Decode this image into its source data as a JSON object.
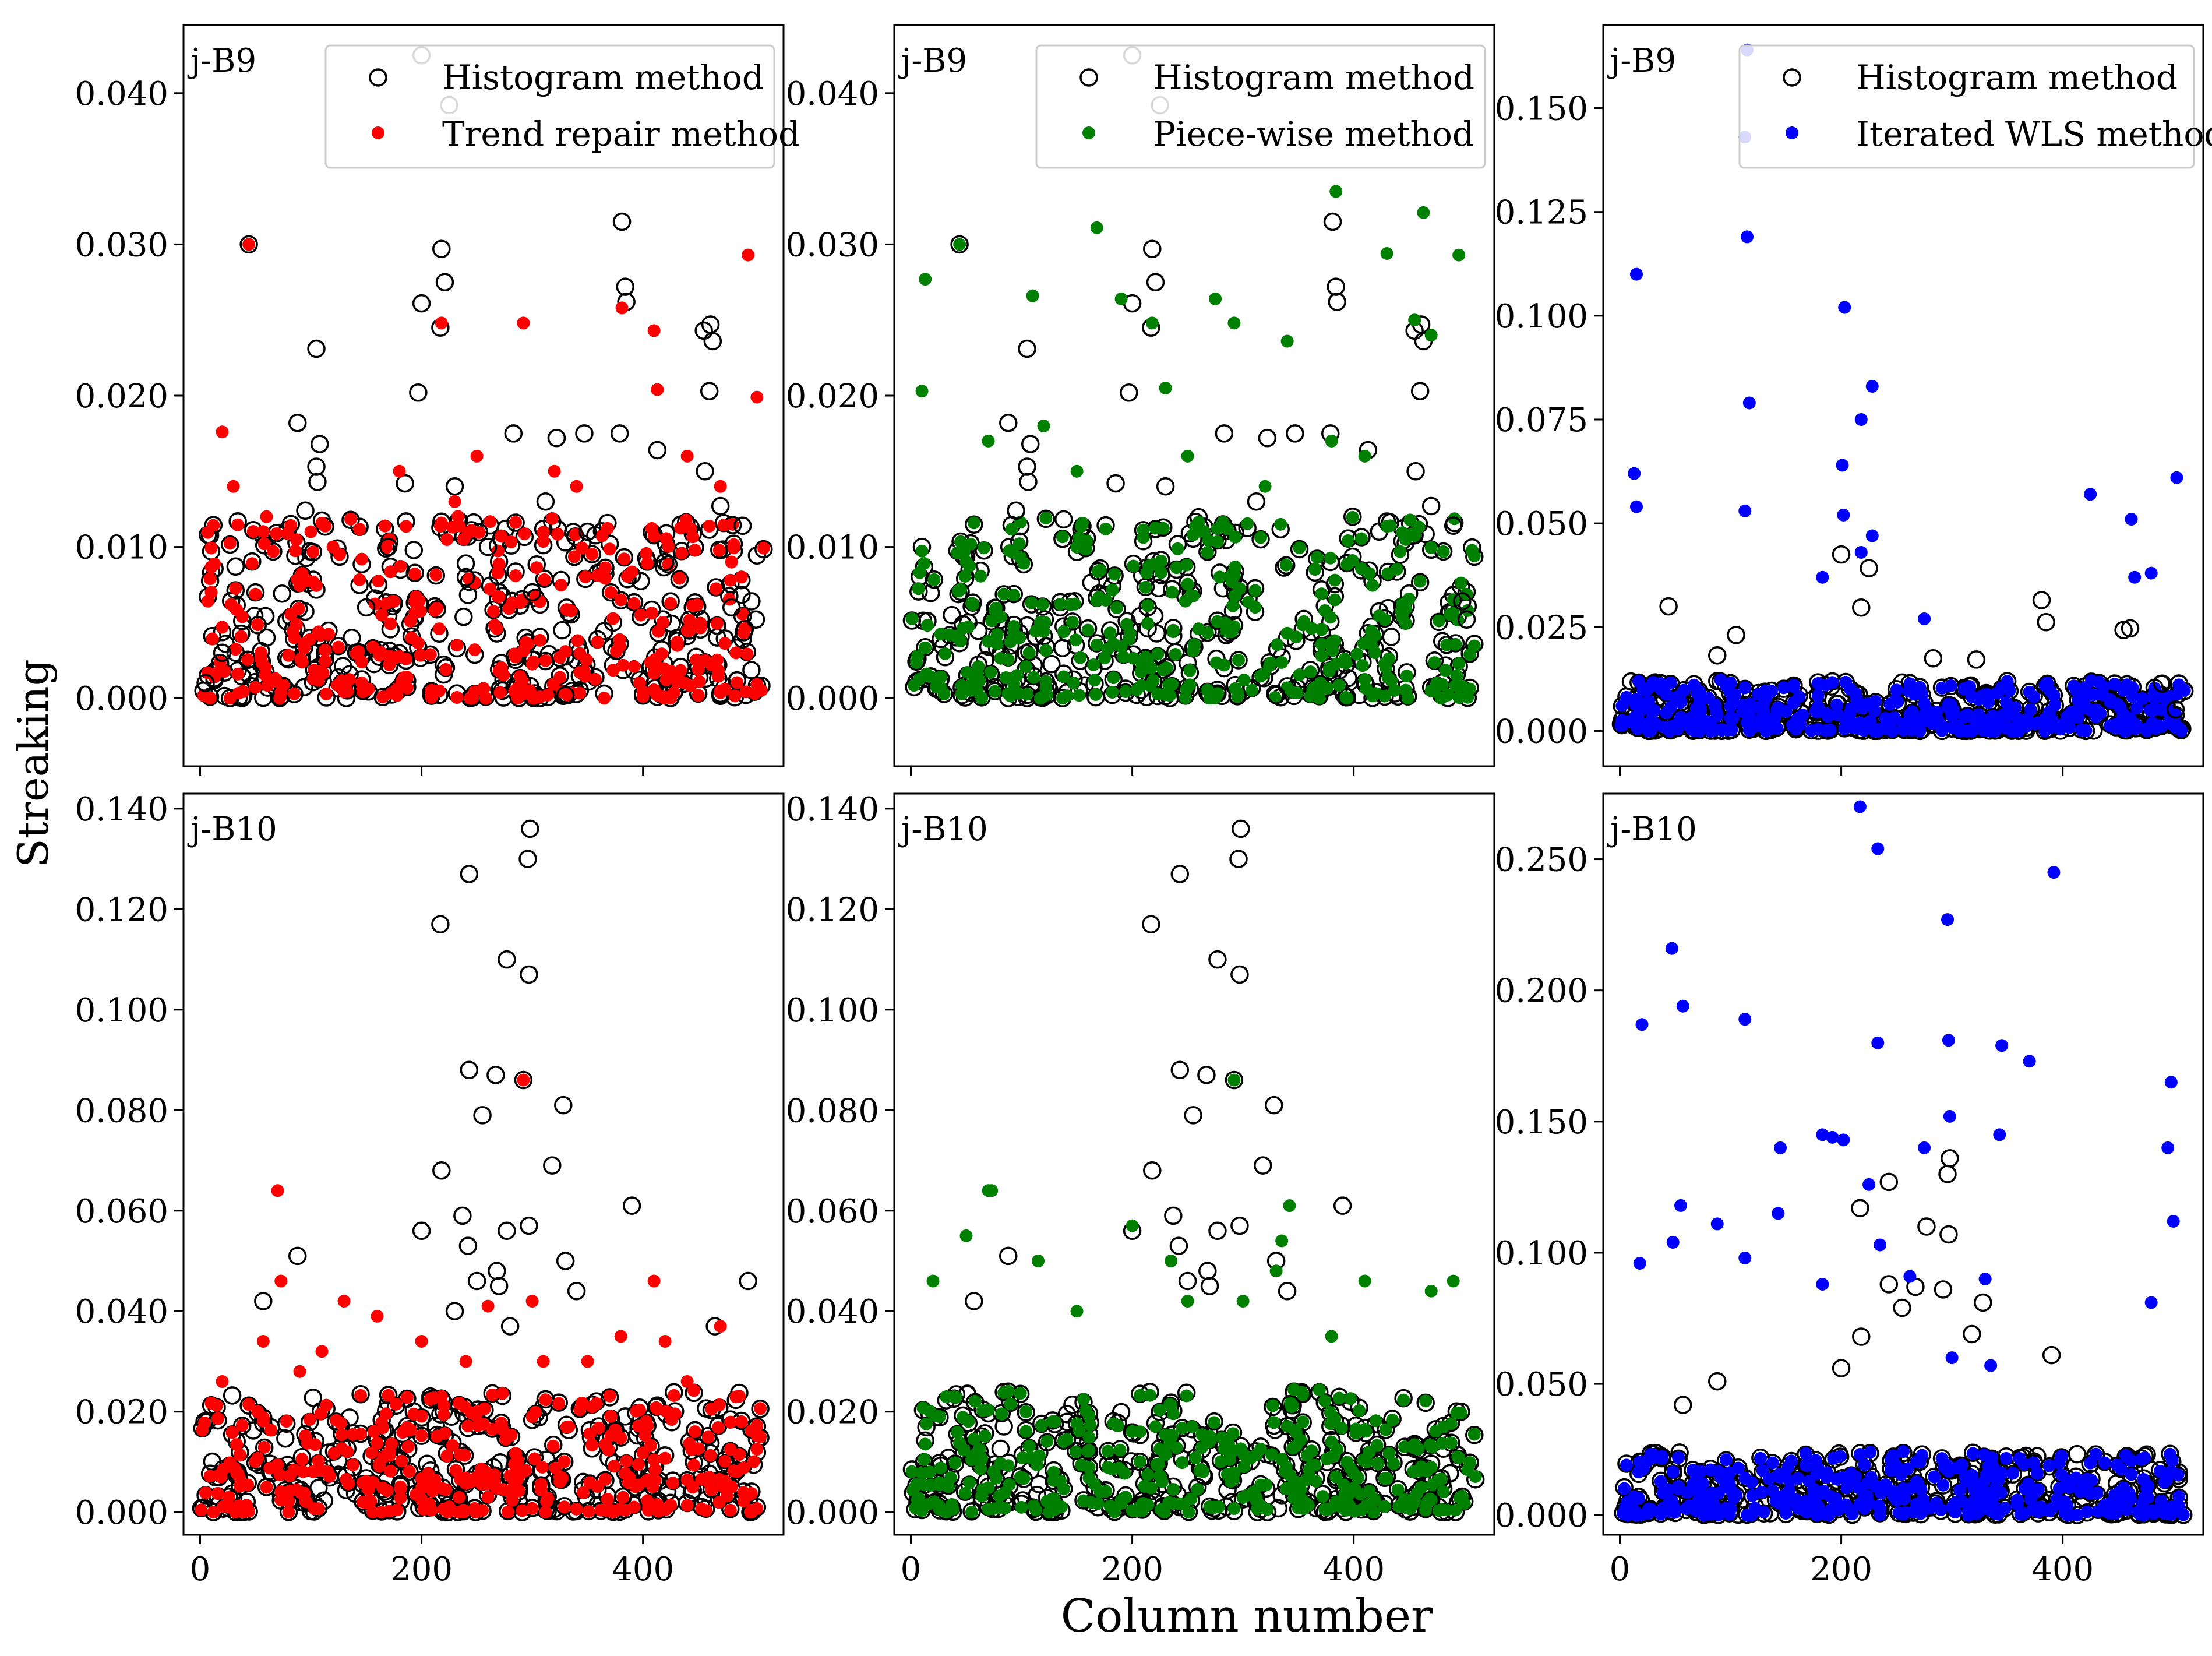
{
  "figure": {
    "ylabel": "Streaking",
    "xlabel": "Column number"
  },
  "chart_data": [
    {
      "type": "scatter",
      "panel_label": "j-B9",
      "xlim": [
        -15,
        527
      ],
      "ylim": [
        -0.0045,
        0.0445
      ],
      "x_ticks": [
        0,
        200,
        400
      ],
      "y_ticks": [
        0.0,
        0.01,
        0.02,
        0.03,
        0.04
      ],
      "y_tick_labels": [
        "0.000",
        "0.010",
        "0.020",
        "0.030",
        "0.040"
      ],
      "legend": "top-right",
      "series": [
        {
          "name": "Histogram method",
          "marker": "open-circle",
          "color": "#000000",
          "x": [
            44,
            200,
            218,
            225,
            381,
            384,
            105,
            88,
            108,
            217,
            200,
            385,
            455,
            461,
            463,
            460,
            283,
            322,
            379,
            347,
            105,
            106,
            221,
            197,
            413,
            185,
            95,
            230,
            490,
            498,
            502,
            470,
            456,
            312,
            330,
            260,
            150,
            60,
            170,
            240,
            300,
            350,
            420,
            480,
            20,
            5
          ],
          "y": [
            0.03,
            0.0425,
            0.0297,
            0.0392,
            0.0315,
            0.0272,
            0.0231,
            0.0182,
            0.0168,
            0.0245,
            0.0261,
            0.0262,
            0.0243,
            0.0247,
            0.0236,
            0.0203,
            0.0175,
            0.0172,
            0.0175,
            0.0175,
            0.0153,
            0.0143,
            0.0275,
            0.0202,
            0.0164,
            0.0142,
            0.0124,
            0.014,
            0.0114,
            0.0064,
            0.0052,
            0.0127,
            0.015,
            0.013,
            0.0002,
            0.01,
            0.006,
            0.004,
            0.01,
            0.008,
            0.007,
            0.011,
            0.009,
            0.006,
            0.003,
            0.001
          ]
        },
        {
          "name": "Trend repair method",
          "marker": "filled-circle",
          "color": "#ff0000",
          "x": [
            44,
            20,
            218,
            292,
            381,
            410,
            413,
            495,
            503,
            30,
            60,
            120,
            180,
            250,
            340,
            440,
            470,
            100,
            230,
            320,
            10,
            480
          ],
          "y": [
            0.03,
            0.0176,
            0.0248,
            0.0248,
            0.0258,
            0.0243,
            0.0204,
            0.0293,
            0.0199,
            0.014,
            0.012,
            0.01,
            0.015,
            0.016,
            0.014,
            0.016,
            0.014,
            0.011,
            0.013,
            0.015,
            0.007,
            0.009
          ]
        }
      ]
    },
    {
      "type": "scatter",
      "panel_label": "j-B9",
      "xlim": [
        -15,
        527
      ],
      "ylim": [
        -0.0045,
        0.0445
      ],
      "x_ticks": [
        0,
        200,
        400
      ],
      "y_ticks": [
        0.0,
        0.01,
        0.02,
        0.03,
        0.04
      ],
      "y_tick_labels": [
        "0.000",
        "0.010",
        "0.020",
        "0.030",
        "0.040"
      ],
      "legend": "top-right",
      "series": [
        {
          "name": "Histogram method",
          "marker": "open-circle",
          "color": "#000000",
          "x": [
            44,
            200,
            218,
            225,
            381,
            384,
            105,
            88,
            108,
            217,
            200,
            385,
            455,
            461,
            463,
            460,
            283,
            322,
            379,
            347,
            105,
            106,
            221,
            197,
            413,
            185,
            95,
            230,
            490,
            498,
            502,
            470,
            456,
            312,
            330
          ],
          "y": [
            0.03,
            0.0425,
            0.0297,
            0.0392,
            0.0315,
            0.0272,
            0.0231,
            0.0182,
            0.0168,
            0.0245,
            0.0261,
            0.0262,
            0.0243,
            0.0247,
            0.0236,
            0.0203,
            0.0175,
            0.0172,
            0.0175,
            0.0175,
            0.0153,
            0.0143,
            0.0275,
            0.0202,
            0.0164,
            0.0142,
            0.0124,
            0.014,
            0.0114,
            0.0064,
            0.0052,
            0.0127,
            0.015,
            0.013,
            0.0002
          ]
        },
        {
          "name": "Piece-wise method",
          "marker": "filled-circle",
          "color": "#008000",
          "x": [
            384,
            463,
            168,
            13,
            110,
            430,
            218,
            190,
            275,
            292,
            340,
            495,
            455,
            470,
            10,
            70,
            150,
            250,
            320,
            410,
            44,
            230,
            120,
            380
          ],
          "y": [
            0.0335,
            0.0321,
            0.0311,
            0.0277,
            0.0266,
            0.0294,
            0.0248,
            0.0264,
            0.0264,
            0.0248,
            0.0236,
            0.0293,
            0.025,
            0.024,
            0.0203,
            0.017,
            0.015,
            0.016,
            0.014,
            0.016,
            0.03,
            0.0205,
            0.018,
            0.017
          ]
        }
      ]
    },
    {
      "type": "scatter",
      "panel_label": "j-B9",
      "xlim": [
        -15,
        527
      ],
      "ylim": [
        -0.0085,
        0.17
      ],
      "x_ticks": [
        0,
        200,
        400
      ],
      "y_ticks": [
        0.0,
        0.025,
        0.05,
        0.075,
        0.1,
        0.125,
        0.15
      ],
      "y_tick_labels": [
        "0.000",
        "0.025",
        "0.050",
        "0.075",
        "0.100",
        "0.125",
        "0.150"
      ],
      "legend": "top-right",
      "series": [
        {
          "name": "Histogram method",
          "marker": "open-circle",
          "color": "#000000",
          "x": [
            200,
            225,
            218,
            381,
            44,
            105,
            88,
            385,
            455,
            461,
            283,
            322,
            490,
            502
          ],
          "y": [
            0.0425,
            0.0392,
            0.0297,
            0.0315,
            0.03,
            0.0231,
            0.0182,
            0.0262,
            0.0243,
            0.0247,
            0.0175,
            0.0172,
            0.0114,
            0.0052
          ]
        },
        {
          "name": "Iterated WLS method",
          "marker": "filled-circle",
          "color": "#0000ff",
          "x": [
            115,
            113,
            15,
            115,
            203,
            13,
            117,
            228,
            218,
            15,
            201,
            113,
            202,
            425,
            462,
            503,
            183,
            228,
            465,
            480,
            218,
            275
          ],
          "y": [
            0.164,
            0.143,
            0.11,
            0.119,
            0.102,
            0.062,
            0.079,
            0.083,
            0.075,
            0.054,
            0.064,
            0.053,
            0.052,
            0.057,
            0.051,
            0.061,
            0.037,
            0.047,
            0.037,
            0.038,
            0.043,
            0.027
          ]
        }
      ]
    },
    {
      "type": "scatter",
      "panel_label": "j-B10",
      "xlim": [
        -15,
        527
      ],
      "ylim": [
        -0.0045,
        0.143
      ],
      "x_ticks": [
        0,
        200,
        400
      ],
      "y_ticks": [
        0.0,
        0.02,
        0.04,
        0.06,
        0.08,
        0.1,
        0.12,
        0.14
      ],
      "y_tick_labels": [
        "0.000",
        "0.020",
        "0.040",
        "0.060",
        "0.080",
        "0.100",
        "0.120",
        "0.140"
      ],
      "legend": "",
      "series": [
        {
          "name": "Histogram method",
          "marker": "open-circle",
          "color": "#000000",
          "x": [
            298,
            296,
            243,
            217,
            277,
            297,
            243,
            267,
            292,
            328,
            255,
            218,
            318,
            390,
            200,
            237,
            242,
            297,
            277,
            88,
            57,
            330,
            340,
            268,
            250,
            270,
            280,
            230,
            495,
            465
          ],
          "y": [
            0.136,
            0.13,
            0.127,
            0.117,
            0.11,
            0.107,
            0.088,
            0.087,
            0.086,
            0.081,
            0.079,
            0.068,
            0.069,
            0.061,
            0.056,
            0.059,
            0.053,
            0.057,
            0.056,
            0.051,
            0.042,
            0.05,
            0.044,
            0.048,
            0.046,
            0.045,
            0.037,
            0.04,
            0.046,
            0.037
          ]
        },
        {
          "name": "Trend repair method",
          "marker": "filled-circle",
          "color": "#ff0000",
          "x": [
            292,
            70,
            73,
            410,
            57,
            130,
            160,
            200,
            240,
            260,
            300,
            350,
            380,
            420,
            470,
            110,
            20,
            90,
            310,
            440
          ],
          "y": [
            0.086,
            0.064,
            0.046,
            0.046,
            0.034,
            0.042,
            0.039,
            0.034,
            0.03,
            0.041,
            0.042,
            0.03,
            0.035,
            0.034,
            0.037,
            0.032,
            0.026,
            0.028,
            0.03,
            0.026
          ]
        }
      ]
    },
    {
      "type": "scatter",
      "panel_label": "j-B10",
      "xlim": [
        -15,
        527
      ],
      "ylim": [
        -0.0045,
        0.143
      ],
      "x_ticks": [
        0,
        200,
        400
      ],
      "y_ticks": [
        0.0,
        0.02,
        0.04,
        0.06,
        0.08,
        0.1,
        0.12,
        0.14
      ],
      "y_tick_labels": [
        "0.000",
        "0.020",
        "0.040",
        "0.060",
        "0.080",
        "0.100",
        "0.120",
        "0.140"
      ],
      "legend": "",
      "series": [
        {
          "name": "Histogram method",
          "marker": "open-circle",
          "color": "#000000",
          "x": [
            298,
            296,
            243,
            217,
            277,
            297,
            243,
            267,
            292,
            328,
            255,
            218,
            318,
            390,
            200,
            237,
            242,
            297,
            277,
            88,
            57,
            330,
            340,
            268,
            250,
            270
          ],
          "y": [
            0.136,
            0.13,
            0.127,
            0.117,
            0.11,
            0.107,
            0.088,
            0.087,
            0.086,
            0.081,
            0.079,
            0.068,
            0.069,
            0.061,
            0.056,
            0.059,
            0.053,
            0.057,
            0.056,
            0.051,
            0.042,
            0.05,
            0.044,
            0.048,
            0.046,
            0.045
          ]
        },
        {
          "name": "Piece-wise method",
          "marker": "filled-circle",
          "color": "#008000",
          "x": [
            70,
            73,
            342,
            50,
            292,
            335,
            115,
            200,
            235,
            300,
            410,
            470,
            490,
            20,
            150,
            380,
            250,
            330
          ],
          "y": [
            0.064,
            0.064,
            0.061,
            0.055,
            0.086,
            0.054,
            0.05,
            0.057,
            0.05,
            0.042,
            0.046,
            0.044,
            0.046,
            0.046,
            0.04,
            0.035,
            0.042,
            0.048
          ]
        }
      ]
    },
    {
      "type": "scatter",
      "panel_label": "j-B10",
      "xlim": [
        -15,
        527
      ],
      "ylim": [
        -0.0075,
        0.275
      ],
      "x_ticks": [
        0,
        200,
        400
      ],
      "y_ticks": [
        0.0,
        0.05,
        0.1,
        0.15,
        0.2,
        0.25
      ],
      "y_tick_labels": [
        "0.000",
        "0.050",
        "0.100",
        "0.150",
        "0.200",
        "0.250"
      ],
      "legend": "",
      "series": [
        {
          "name": "Histogram method",
          "marker": "open-circle",
          "color": "#000000",
          "x": [
            298,
            296,
            243,
            217,
            277,
            297,
            243,
            267,
            292,
            328,
            255,
            218,
            318,
            390,
            200,
            88,
            57
          ],
          "y": [
            0.136,
            0.13,
            0.127,
            0.117,
            0.11,
            0.107,
            0.088,
            0.087,
            0.086,
            0.081,
            0.079,
            0.068,
            0.069,
            0.061,
            0.056,
            0.051,
            0.042
          ]
        },
        {
          "name": "Iterated WLS method",
          "marker": "filled-circle",
          "color": "#0000ff",
          "x": [
            217,
            233,
            392,
            296,
            47,
            233,
            57,
            20,
            113,
            345,
            370,
            297,
            183,
            498,
            192,
            202,
            225,
            275,
            495,
            343,
            145,
            298,
            55,
            18,
            48,
            88,
            113,
            235,
            183,
            143,
            262,
            330,
            500,
            480,
            335,
            300
          ],
          "y": [
            0.27,
            0.254,
            0.245,
            0.227,
            0.216,
            0.18,
            0.194,
            0.187,
            0.189,
            0.179,
            0.173,
            0.181,
            0.145,
            0.165,
            0.144,
            0.143,
            0.126,
            0.14,
            0.14,
            0.145,
            0.14,
            0.152,
            0.118,
            0.096,
            0.104,
            0.111,
            0.098,
            0.103,
            0.088,
            0.115,
            0.091,
            0.09,
            0.112,
            0.081,
            0.057,
            0.06
          ]
        }
      ]
    }
  ]
}
